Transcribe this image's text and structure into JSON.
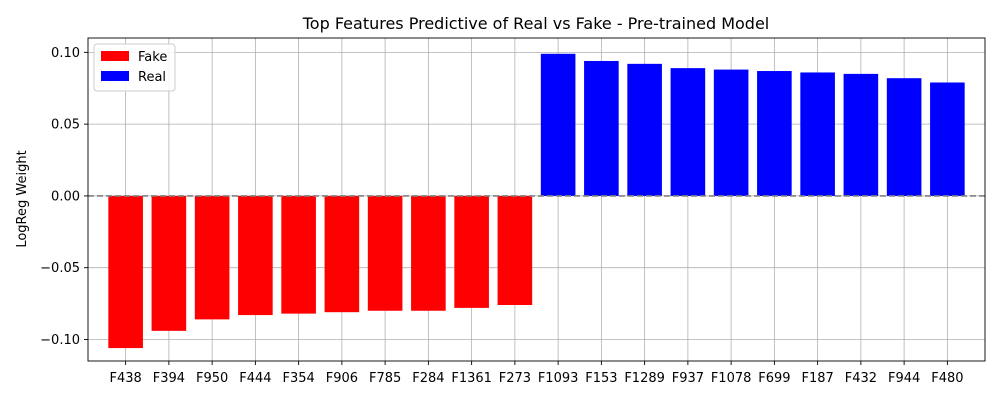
{
  "chart_data": {
    "type": "bar",
    "title": "Top Features Predictive of Real vs Fake - Pre-trained Model",
    "xlabel": "",
    "ylabel": "LogReg Weight",
    "ylim": [
      -0.115,
      0.11
    ],
    "yticks": [
      -0.1,
      -0.05,
      0.0,
      0.05,
      0.1
    ],
    "ytick_labels": [
      "−0.10",
      "−0.05",
      "0.00",
      "0.05",
      "0.10"
    ],
    "grid": true,
    "zero_line": {
      "value": 0,
      "style": "dashed",
      "color": "#808080"
    },
    "legend": {
      "placement": "top-left",
      "entries": [
        {
          "label": "Fake",
          "color": "#ff0000"
        },
        {
          "label": "Real",
          "color": "#0000ff"
        }
      ]
    },
    "categories": [
      "F438",
      "F394",
      "F950",
      "F444",
      "F354",
      "F906",
      "F785",
      "F284",
      "F1361",
      "F273",
      "F1093",
      "F153",
      "F1289",
      "F937",
      "F1078",
      "F699",
      "F187",
      "F432",
      "F944",
      "F480"
    ],
    "values": [
      -0.106,
      -0.094,
      -0.086,
      -0.083,
      -0.082,
      -0.081,
      -0.08,
      -0.08,
      -0.078,
      -0.076,
      0.099,
      0.094,
      0.092,
      0.089,
      0.088,
      0.087,
      0.086,
      0.085,
      0.082,
      0.079
    ],
    "colors": [
      "#ff0000",
      "#ff0000",
      "#ff0000",
      "#ff0000",
      "#ff0000",
      "#ff0000",
      "#ff0000",
      "#ff0000",
      "#ff0000",
      "#ff0000",
      "#0000ff",
      "#0000ff",
      "#0000ff",
      "#0000ff",
      "#0000ff",
      "#0000ff",
      "#0000ff",
      "#0000ff",
      "#0000ff",
      "#0000ff"
    ]
  }
}
